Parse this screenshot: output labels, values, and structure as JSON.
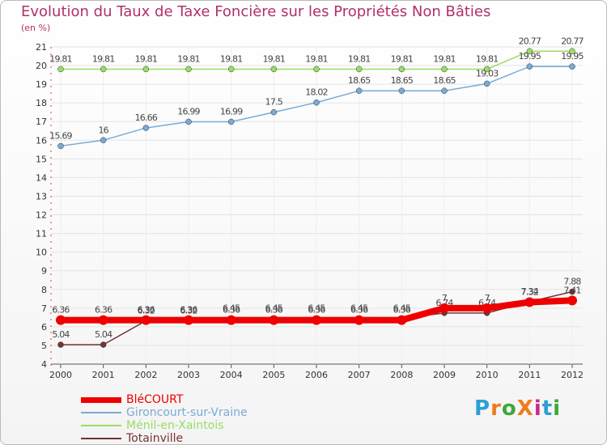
{
  "title": "Evolution du Taux de Taxe Foncière sur les Propriétés Non Bâties",
  "subtitle": "(en %)",
  "logo": "ProXiti",
  "chart_data": {
    "type": "line",
    "x": [
      "2000",
      "2001",
      "2002",
      "2003",
      "2004",
      "2005",
      "2006",
      "2007",
      "2008",
      "2009",
      "2010",
      "2011",
      "2012"
    ],
    "ylim": [
      4,
      21
    ],
    "yticks": [
      4,
      5,
      6,
      7,
      8,
      9,
      10,
      11,
      12,
      13,
      14,
      15,
      16,
      17,
      18,
      19,
      20,
      21
    ],
    "series": [
      {
        "name": "BléCOURT",
        "color": "#ee0000",
        "values": [
          6.36,
          6.36,
          6.36,
          6.36,
          6.36,
          6.36,
          6.36,
          6.36,
          6.36,
          7,
          7,
          7.32,
          7.41
        ],
        "labels": [
          "6.36",
          "6.36",
          "6.36",
          "6.36",
          "6.36",
          "6.36",
          "6.36",
          "6.36",
          "6.36",
          "7",
          "7",
          "7.32",
          "7.41"
        ]
      },
      {
        "name": "Gironcourt-sur-Vraine",
        "color": "#7aaad6",
        "values": [
          15.69,
          16,
          16.66,
          16.99,
          16.99,
          17.5,
          18.02,
          18.65,
          18.65,
          18.65,
          19.03,
          19.95,
          19.95
        ],
        "labels": [
          "15.69",
          "16",
          "16.66",
          "16.99",
          "16.99",
          "17.5",
          "18.02",
          "18.65",
          "18.65",
          "18.65",
          "19.03",
          "19.95",
          "19.95"
        ]
      },
      {
        "name": "Ménil-en-Xaintois",
        "color": "#99dd66",
        "values": [
          19.81,
          19.81,
          19.81,
          19.81,
          19.81,
          19.81,
          19.81,
          19.81,
          19.81,
          19.81,
          19.81,
          20.77,
          20.77
        ],
        "labels": [
          "19.81",
          "19.81",
          "19.81",
          "19.81",
          "19.81",
          "19.81",
          "19.81",
          "19.81",
          "19.81",
          "19.81",
          "19.81",
          "20.77",
          "20.77"
        ]
      },
      {
        "name": "Totainville",
        "color": "#773333",
        "values": [
          5.04,
          5.04,
          6.32,
          6.32,
          6.45,
          6.45,
          6.45,
          6.45,
          6.45,
          6.74,
          6.74,
          7.34,
          7.88
        ],
        "labels": [
          "5.04",
          "5.04",
          "6.32",
          "6.32",
          "6.45",
          "6.45",
          "6.45",
          "6.45",
          "6.45",
          "6.74",
          "6.74",
          "7.34",
          "7.88"
        ]
      }
    ]
  }
}
